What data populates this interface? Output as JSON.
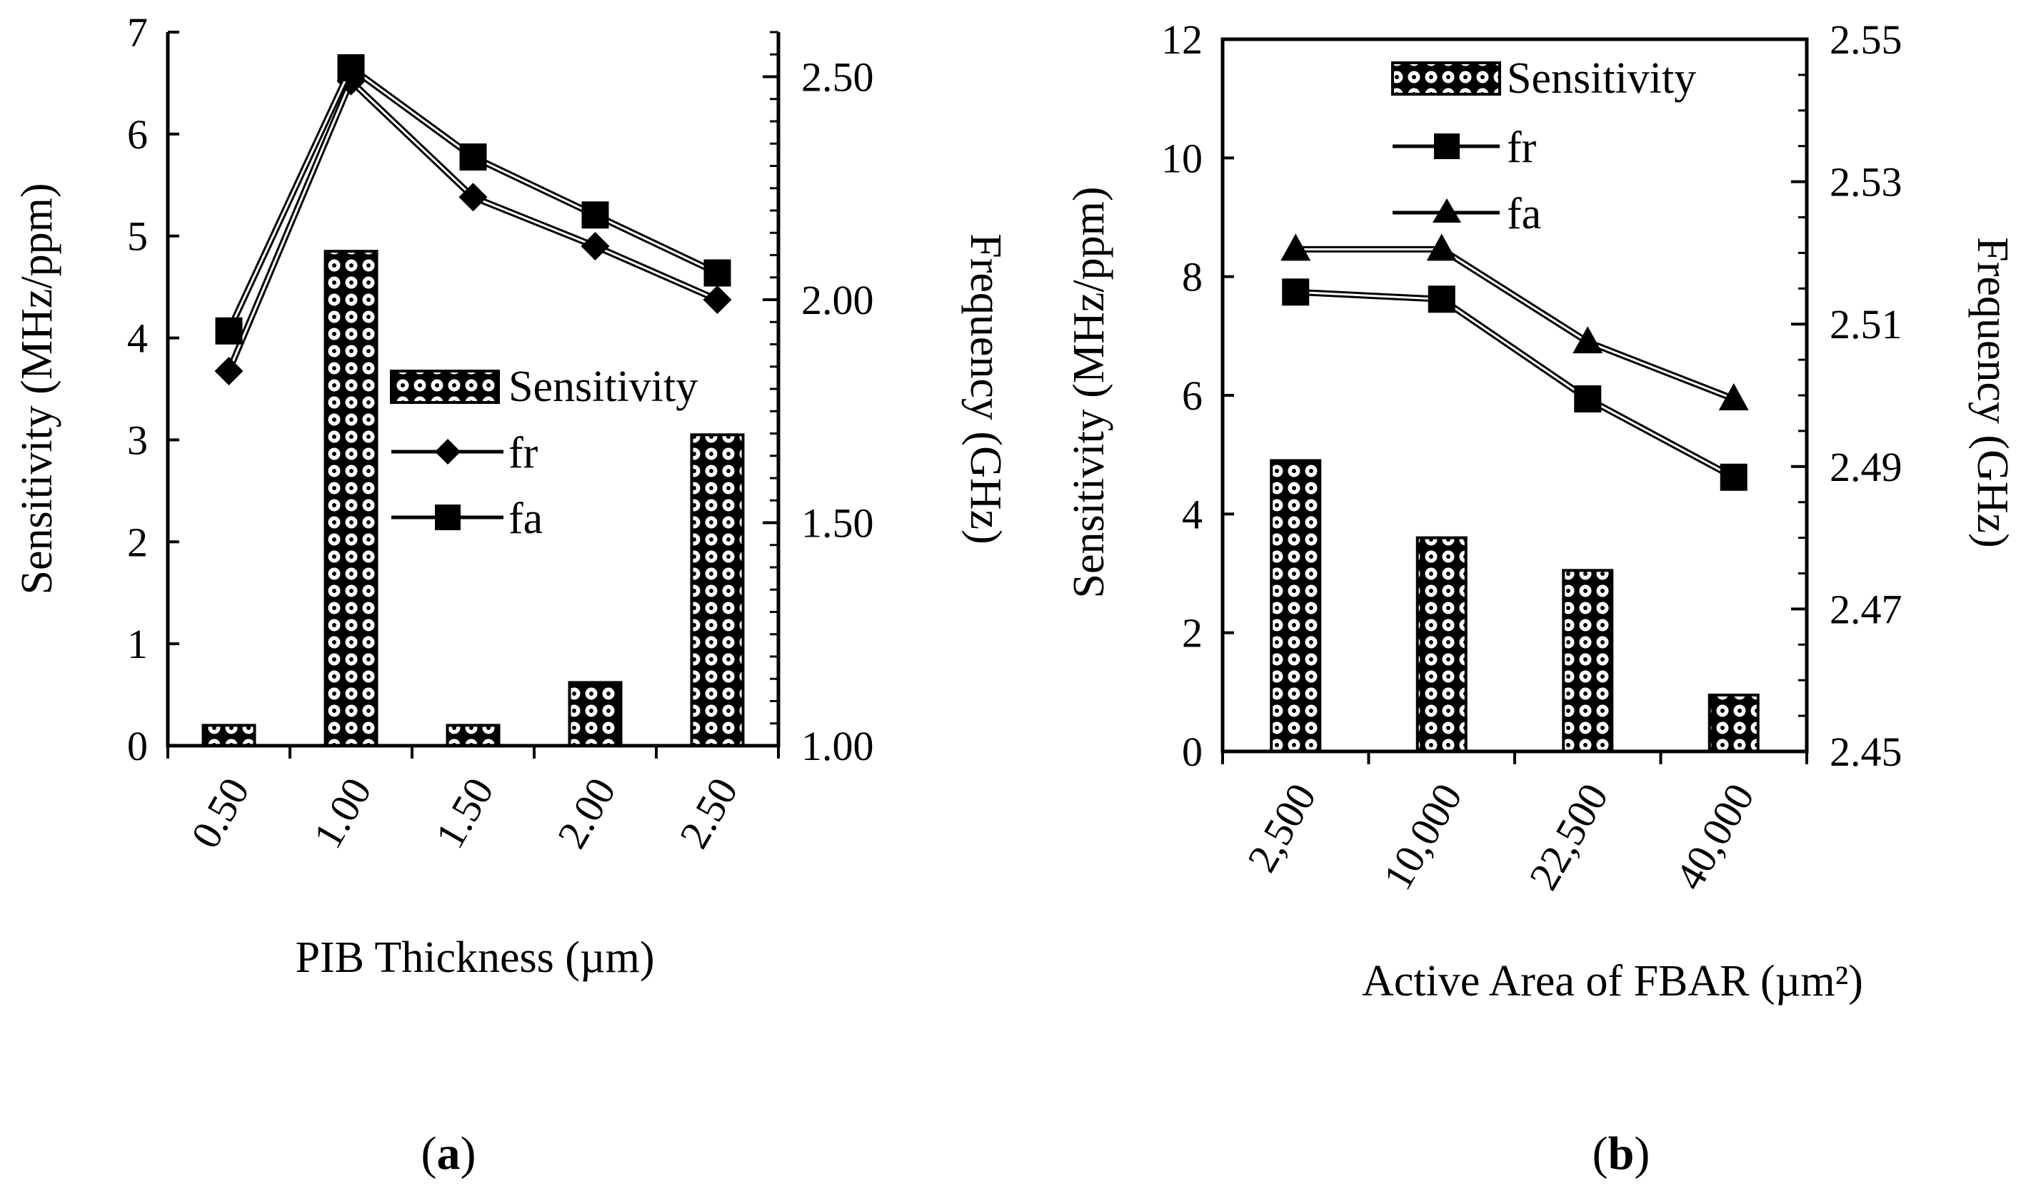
{
  "chart_data": [
    {
      "type": "bar",
      "panel_label": "(a)",
      "panel_letter": "a",
      "xlabel": "PIB Thickness  (µm)",
      "ylabel": "Sensitivity (MHz/ppm)",
      "y2label": "Frequency (GHz)",
      "categories": [
        "0.50",
        "1.00",
        "1.50",
        "2.00",
        "2.50"
      ],
      "ylim": [
        0,
        7
      ],
      "y_ticks": [
        "0",
        "1",
        "2",
        "3",
        "4",
        "5",
        "6",
        "7"
      ],
      "y2lim": [
        1.0,
        2.6
      ],
      "y2_ticks": [
        "1.00",
        "1.50",
        "2.00",
        "2.50"
      ],
      "y2_tick_values": [
        1.0,
        1.5,
        2.0,
        2.5
      ],
      "legend_position": "center-right",
      "series": [
        {
          "name": "Sensitivity",
          "kind": "bar",
          "axis": "left",
          "values": [
            0.2,
            4.85,
            0.2,
            0.62,
            3.05
          ]
        },
        {
          "name": "fr",
          "kind": "line",
          "marker": "diamond",
          "axis": "right",
          "values": [
            1.84,
            2.49,
            2.23,
            2.12,
            2.0
          ]
        },
        {
          "name": "fa",
          "kind": "line",
          "marker": "square",
          "axis": "right",
          "values": [
            1.93,
            2.52,
            2.32,
            2.19,
            2.06
          ]
        }
      ]
    },
    {
      "type": "bar",
      "panel_label": "(b)",
      "panel_letter": "b",
      "xlabel": "Active Area of  FBAR (µm²)",
      "ylabel": "Sensitivity (MHz/ppm)",
      "y2label": "Frequency (GHz)",
      "categories": [
        "2,500",
        "10,000",
        "22,500",
        "40,000"
      ],
      "ylim": [
        0,
        12
      ],
      "y_ticks": [
        "0",
        "2",
        "4",
        "6",
        "8",
        "10",
        "12"
      ],
      "y2lim": [
        2.45,
        2.55
      ],
      "y2_ticks": [
        "2.45",
        "2.47",
        "2.49",
        "2.51",
        "2.53",
        "2.55"
      ],
      "y2_tick_values": [
        2.45,
        2.47,
        2.49,
        2.51,
        2.53,
        2.55
      ],
      "legend_position": "top-right",
      "series": [
        {
          "name": "Sensitivity",
          "kind": "bar",
          "axis": "left",
          "values": [
            4.9,
            3.6,
            3.05,
            0.95
          ]
        },
        {
          "name": "fr",
          "kind": "line",
          "marker": "square",
          "axis": "right",
          "values": [
            2.5145,
            2.5135,
            2.4995,
            2.4885
          ]
        },
        {
          "name": "fa",
          "kind": "line",
          "marker": "triangle",
          "axis": "right",
          "values": [
            2.5205,
            2.5205,
            2.5075,
            2.4995
          ]
        }
      ]
    }
  ]
}
